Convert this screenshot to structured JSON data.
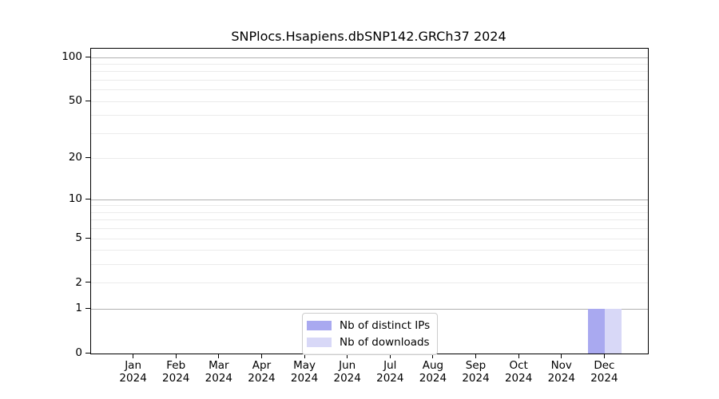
{
  "chart_data": {
    "type": "bar",
    "title": "SNPlocs.Hsapiens.dbSNP142.GRCh37 2024",
    "categories": [
      "Jan",
      "Feb",
      "Mar",
      "Apr",
      "May",
      "Jun",
      "Jul",
      "Aug",
      "Sep",
      "Oct",
      "Nov",
      "Dec"
    ],
    "year_label": "2024",
    "series": [
      {
        "name": "Nb of distinct IPs",
        "color": "#a9a9f0",
        "values": [
          0,
          0,
          0,
          0,
          0,
          0,
          0,
          0,
          0,
          0,
          0,
          1
        ]
      },
      {
        "name": "Nb of downloads",
        "color": "#d8d8f7",
        "values": [
          0,
          0,
          0,
          0,
          0,
          0,
          0,
          0,
          0,
          0,
          0,
          1
        ]
      }
    ],
    "xlabel": "",
    "ylabel": "",
    "yscale": "log1p",
    "yticks": [
      0,
      1,
      2,
      5,
      10,
      20,
      50,
      100
    ],
    "ylim": [
      0,
      115
    ],
    "grid_major": [
      1,
      10,
      100
    ],
    "grid_minor": [
      2,
      3,
      4,
      5,
      6,
      7,
      8,
      9,
      20,
      30,
      40,
      50,
      60,
      70,
      80,
      90
    ],
    "grid": "on",
    "legend_position": "lower center",
    "colors": {
      "axis": "#000000",
      "grid_major": "#b0b0b0",
      "grid_minor": "#ebebeb",
      "legend_border": "#cccccc"
    }
  }
}
